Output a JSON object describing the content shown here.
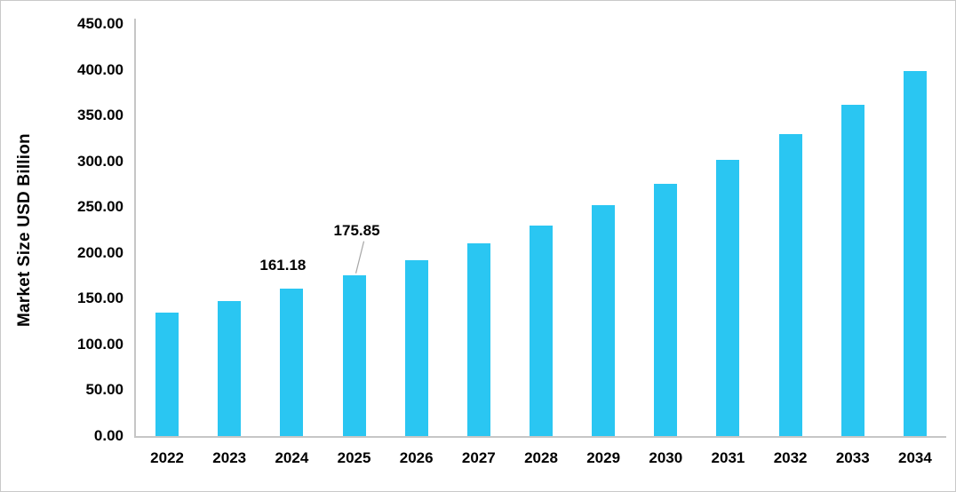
{
  "chart_data": {
    "type": "bar",
    "title": "",
    "xlabel": "",
    "ylabel": "Market Size USD Billion",
    "categories": [
      "2022",
      "2023",
      "2024",
      "2025",
      "2026",
      "2027",
      "2028",
      "2029",
      "2030",
      "2031",
      "2032",
      "2033",
      "2034"
    ],
    "series": [
      {
        "name": "Market Size USD Billion",
        "values": [
          134.6,
          147.4,
          161.18,
          175.85,
          192.3,
          210.5,
          230.3,
          252.0,
          275.7,
          301.7,
          330.1,
          361.3,
          398.3
        ]
      }
    ],
    "ylim": [
      0,
      450
    ],
    "y_tick_labels": [
      "0.00",
      "50.00",
      "100.00",
      "150.00",
      "200.00",
      "250.00",
      "300.00",
      "350.00",
      "400.00",
      "450.00"
    ],
    "grid": false,
    "legend": false,
    "bar_color": "#2AC6F2",
    "axis_color": "#c6c6c6",
    "data_labels": [
      {
        "category": "2024",
        "text": "161.18",
        "dx": -10,
        "gap": 16,
        "leader": false
      },
      {
        "category": "2025",
        "text": "175.85",
        "dx": 3,
        "gap": 40,
        "leader": true
      }
    ]
  }
}
